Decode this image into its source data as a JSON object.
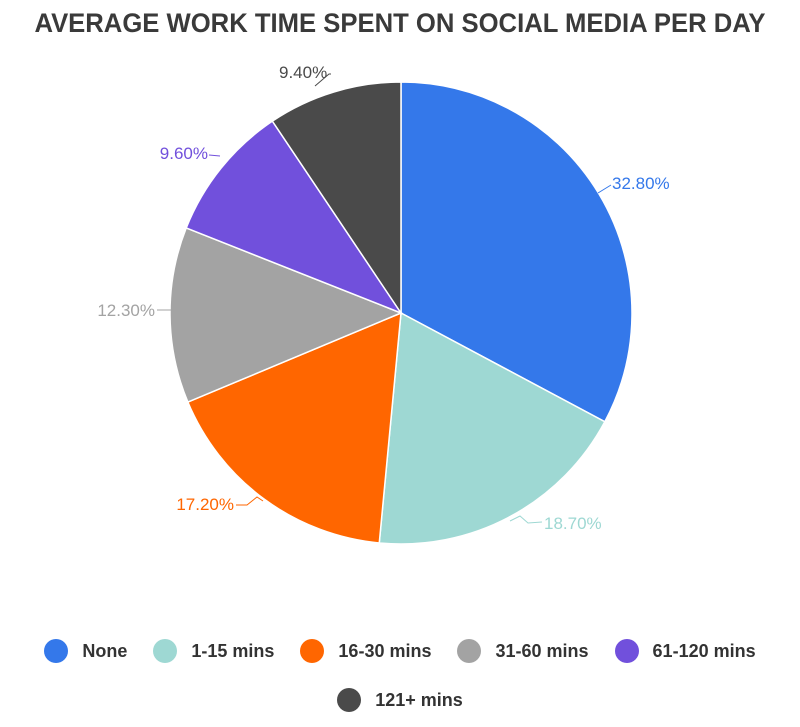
{
  "chart_data": {
    "type": "pie",
    "title": "AVERAGE WORK TIME SPENT ON SOCIAL MEDIA PER DAY",
    "categories": [
      "None",
      "1-15 mins",
      "16-30 mins",
      "31-60 mins",
      "61-120 mins",
      "121+ mins"
    ],
    "values": [
      32.8,
      18.7,
      17.2,
      12.3,
      9.6,
      9.4
    ],
    "data_labels": [
      "32.80%",
      "18.70%",
      "17.20%",
      "12.30%",
      "9.60%",
      "9.40%"
    ],
    "colors": [
      "#3478ea",
      "#9ed8d3",
      "#ff6600",
      "#a3a3a3",
      "#7150dc",
      "#4a4a4a"
    ],
    "legend_position": "bottom",
    "start_angle": "top",
    "direction": "clockwise"
  }
}
